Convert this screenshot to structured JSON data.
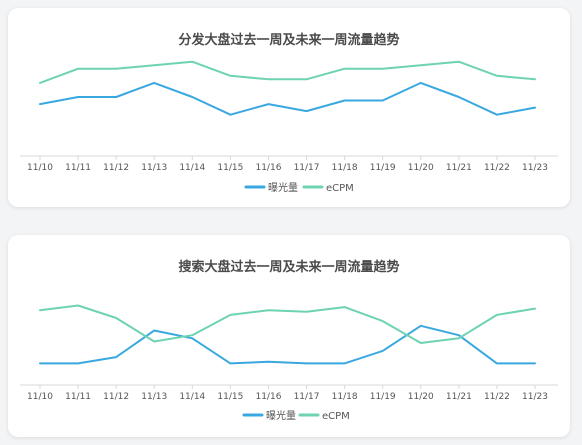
{
  "chart_data": [
    {
      "type": "line",
      "title": "分发大盘过去一周及未来一周流量趋势",
      "categories": [
        "11/10",
        "11/11",
        "11/12",
        "11/13",
        "11/14",
        "11/15",
        "11/16",
        "11/17",
        "11/18",
        "11/19",
        "11/20",
        "11/21",
        "11/22",
        "11/23"
      ],
      "series": [
        {
          "name": "曝光量",
          "color": "#3aa8e0",
          "values": [
            43,
            45,
            45,
            49,
            45,
            40,
            43,
            41,
            44,
            44,
            49,
            45,
            40,
            42
          ]
        },
        {
          "name": "eCPM",
          "color": "#6ed3b0",
          "values": [
            49,
            53,
            53,
            54,
            55,
            51,
            50,
            50,
            53,
            53,
            54,
            55,
            51,
            50
          ]
        }
      ],
      "ylim": [
        0,
        100
      ],
      "xlabel": "",
      "ylabel": "",
      "grid": false,
      "legend": "bottom-center"
    },
    {
      "type": "line",
      "title": "搜索大盘过去一周及未来一周流量趋势",
      "categories": [
        "11/10",
        "11/11",
        "11/12",
        "11/13",
        "11/14",
        "11/15",
        "11/16",
        "11/17",
        "11/18",
        "11/19",
        "11/20",
        "11/21",
        "11/22",
        "11/23"
      ],
      "series": [
        {
          "name": "曝光量",
          "color": "#3aa8e0",
          "values": [
            40,
            40,
            44,
            61,
            56,
            40,
            41,
            40,
            40,
            48,
            64,
            58,
            40,
            40
          ]
        },
        {
          "name": "eCPM",
          "color": "#6ed3b0",
          "values": [
            74,
            77,
            69,
            54,
            58,
            71,
            74,
            73,
            76,
            67,
            53,
            56,
            71,
            75
          ]
        }
      ],
      "ylim": [
        0,
        100
      ],
      "xlabel": "",
      "ylabel": "",
      "grid": false,
      "legend": "bottom-center"
    }
  ]
}
